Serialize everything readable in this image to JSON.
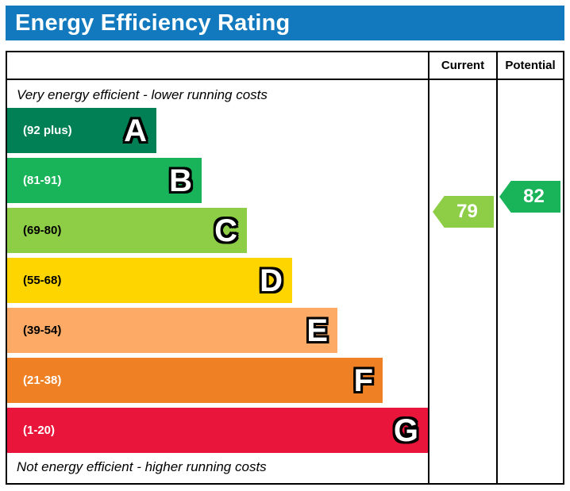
{
  "title": "Energy Efficiency Rating",
  "accent_color": "#1279be",
  "header": {
    "current": "Current",
    "potential": "Potential"
  },
  "notes": {
    "top": "Very energy efficient - lower running costs",
    "bottom": "Not energy efficient - higher running costs"
  },
  "bands": [
    {
      "letter": "A",
      "range": "(92 plus)",
      "color": "#008054",
      "range_text_color": "#ffffff"
    },
    {
      "letter": "B",
      "range": "(81-91)",
      "color": "#19b459",
      "range_text_color": "#ffffff"
    },
    {
      "letter": "C",
      "range": "(69-80)",
      "color": "#8dce46",
      "range_text_color": "#000000"
    },
    {
      "letter": "D",
      "range": "(55-68)",
      "color": "#ffd500",
      "range_text_color": "#000000"
    },
    {
      "letter": "E",
      "range": "(39-54)",
      "color": "#fcaa65",
      "range_text_color": "#000000"
    },
    {
      "letter": "F",
      "range": "(21-38)",
      "color": "#ef8023",
      "range_text_color": "#ffffff"
    },
    {
      "letter": "G",
      "range": "(1-20)",
      "color": "#e9153b",
      "range_text_color": "#ffffff"
    }
  ],
  "current": {
    "value": "79",
    "color": "#8dce46"
  },
  "potential": {
    "value": "82",
    "color": "#19b459"
  },
  "chart_data": {
    "type": "bar",
    "orientation": "horizontal",
    "title": "Energy Efficiency Rating",
    "categories": [
      "A",
      "B",
      "C",
      "D",
      "E",
      "F",
      "G"
    ],
    "band_ranges": [
      "92 plus",
      "81-91",
      "69-80",
      "55-68",
      "39-54",
      "21-38",
      "1-20"
    ],
    "band_colors": [
      "#008054",
      "#19b459",
      "#8dce46",
      "#ffd500",
      "#fcaa65",
      "#ef8023",
      "#e9153b"
    ],
    "bar_lengths_relative": [
      1,
      2,
      3,
      4,
      5,
      6,
      7
    ],
    "markers": [
      {
        "name": "Current",
        "value": 79,
        "band": "C",
        "color": "#8dce46"
      },
      {
        "name": "Potential",
        "value": 82,
        "band": "B",
        "color": "#19b459"
      }
    ],
    "annotations": [
      "Very energy efficient - lower running costs",
      "Not energy efficient - higher running costs"
    ],
    "value_range": [
      1,
      100
    ],
    "legend_position": "none"
  }
}
